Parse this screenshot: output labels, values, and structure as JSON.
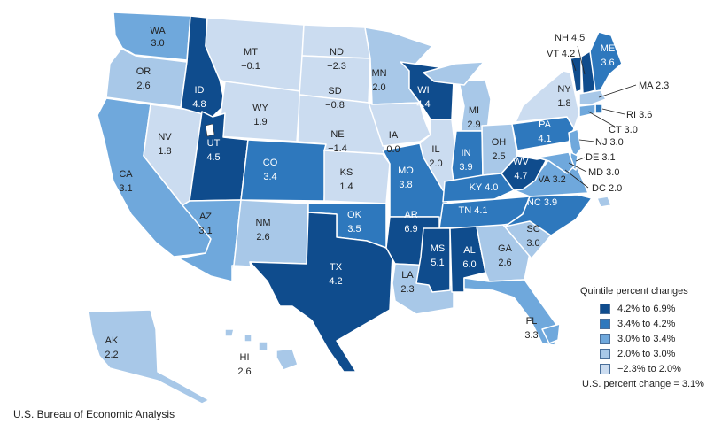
{
  "colors": {
    "q1": "#0f4c8d",
    "q2": "#2e78bd",
    "q3": "#6fa8dc",
    "q4": "#a8c8e8",
    "q5": "#cbdcf0"
  },
  "states": [
    {
      "abbr": "WA",
      "value": "3.0",
      "q": "q3"
    },
    {
      "abbr": "OR",
      "value": "2.6",
      "q": "q4"
    },
    {
      "abbr": "CA",
      "value": "3.1",
      "q": "q3"
    },
    {
      "abbr": "NV",
      "value": "1.8",
      "q": "q5"
    },
    {
      "abbr": "ID",
      "value": "4.8",
      "q": "q1"
    },
    {
      "abbr": "MT",
      "value": "−0.1",
      "q": "q5"
    },
    {
      "abbr": "WY",
      "value": "1.9",
      "q": "q5"
    },
    {
      "abbr": "UT",
      "value": "4.5",
      "q": "q1"
    },
    {
      "abbr": "AZ",
      "value": "3.1",
      "q": "q3"
    },
    {
      "abbr": "CO",
      "value": "3.4",
      "q": "q2"
    },
    {
      "abbr": "NM",
      "value": "2.6",
      "q": "q4"
    },
    {
      "abbr": "ND",
      "value": "−2.3",
      "q": "q5"
    },
    {
      "abbr": "SD",
      "value": "−0.8",
      "q": "q5"
    },
    {
      "abbr": "NE",
      "value": "−1.4",
      "q": "q5"
    },
    {
      "abbr": "KS",
      "value": "1.4",
      "q": "q5"
    },
    {
      "abbr": "OK",
      "value": "3.5",
      "q": "q2"
    },
    {
      "abbr": "TX",
      "value": "4.2",
      "q": "q1"
    },
    {
      "abbr": "MN",
      "value": "2.0",
      "q": "q4"
    },
    {
      "abbr": "IA",
      "value": "0.0",
      "q": "q5"
    },
    {
      "abbr": "MO",
      "value": "3.8",
      "q": "q2"
    },
    {
      "abbr": "AR",
      "value": "6.9",
      "q": "q1"
    },
    {
      "abbr": "LA",
      "value": "2.3",
      "q": "q4"
    },
    {
      "abbr": "WI",
      "value": "4.4",
      "q": "q1"
    },
    {
      "abbr": "IL",
      "value": "2.0",
      "q": "q5"
    },
    {
      "abbr": "MI",
      "value": "2.9",
      "q": "q4"
    },
    {
      "abbr": "IN",
      "value": "3.9",
      "q": "q2"
    },
    {
      "abbr": "OH",
      "value": "2.5",
      "q": "q4"
    },
    {
      "abbr": "KY",
      "value": "4.0",
      "q": "q2"
    },
    {
      "abbr": "TN",
      "value": "4.1",
      "q": "q2"
    },
    {
      "abbr": "MS",
      "value": "5.1",
      "q": "q1"
    },
    {
      "abbr": "AL",
      "value": "6.0",
      "q": "q1"
    },
    {
      "abbr": "GA",
      "value": "2.6",
      "q": "q4"
    },
    {
      "abbr": "FL",
      "value": "3.3",
      "q": "q3"
    },
    {
      "abbr": "SC",
      "value": "3.0",
      "q": "q4"
    },
    {
      "abbr": "NC",
      "value": "3.9",
      "q": "q2"
    },
    {
      "abbr": "VA",
      "value": "3.2",
      "q": "q3"
    },
    {
      "abbr": "WV",
      "value": "4.7",
      "q": "q1"
    },
    {
      "abbr": "PA",
      "value": "4.1",
      "q": "q2"
    },
    {
      "abbr": "NY",
      "value": "1.8",
      "q": "q5"
    },
    {
      "abbr": "ME",
      "value": "3.6",
      "q": "q2"
    },
    {
      "abbr": "VT",
      "value": "4.2",
      "q": "q1"
    },
    {
      "abbr": "NH",
      "value": "4.5",
      "q": "q1"
    },
    {
      "abbr": "MA",
      "value": "2.3",
      "q": "q4"
    },
    {
      "abbr": "RI",
      "value": "3.6",
      "q": "q2"
    },
    {
      "abbr": "CT",
      "value": "3.0",
      "q": "q3"
    },
    {
      "abbr": "NJ",
      "value": "3.0",
      "q": "q3"
    },
    {
      "abbr": "DE",
      "value": "3.1",
      "q": "q3"
    },
    {
      "abbr": "MD",
      "value": "3.0",
      "q": "q3"
    },
    {
      "abbr": "DC",
      "value": "2.0",
      "q": "q4"
    },
    {
      "abbr": "AK",
      "value": "2.2",
      "q": "q4"
    },
    {
      "abbr": "HI",
      "value": "2.6",
      "q": "q4"
    }
  ],
  "legend": {
    "title": "Quintile percent changes",
    "items": [
      {
        "label": "4.2% to 6.9%",
        "q": "q1"
      },
      {
        "label": "3.4% to 4.2%",
        "q": "q2"
      },
      {
        "label": "3.0% to 3.4%",
        "q": "q3"
      },
      {
        "label": "2.0% to 3.0%",
        "q": "q4"
      },
      {
        "label": "−2.3% to 2.0%",
        "q": "q5"
      }
    ]
  },
  "us_change": "U.S. percent change = 3.1%",
  "source": "U.S. Bureau of Economic Analysis"
}
